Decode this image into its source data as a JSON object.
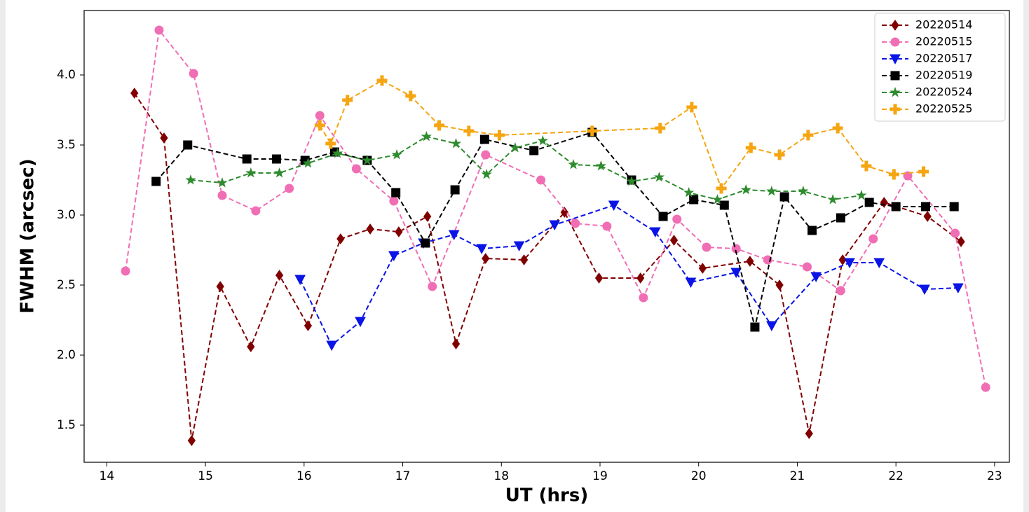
{
  "chart_data": {
    "type": "line",
    "x_label": "UT (hrs)",
    "y_label": "FWHM (arcsec)",
    "xlim": [
      13.77,
      23.15
    ],
    "ylim": [
      1.235,
      4.46
    ],
    "xticks": [
      14,
      15,
      16,
      17,
      18,
      19,
      20,
      21,
      22,
      23
    ],
    "yticks": [
      {
        "value": 1.5,
        "label": "1.5"
      },
      {
        "value": 2.0,
        "label": "2.0"
      },
      {
        "value": 2.5,
        "label": "2.5"
      },
      {
        "value": 3.0,
        "label": "3.0"
      },
      {
        "value": 3.5,
        "label": "3.5"
      },
      {
        "value": 4.0,
        "label": "4.0"
      }
    ],
    "legend": "upper right",
    "series": [
      {
        "name": "20220514",
        "color": "#800000",
        "marker": "diamond",
        "x": [
          14.28,
          14.58,
          14.86,
          15.15,
          15.46,
          15.75,
          16.04,
          16.37,
          16.67,
          16.96,
          17.25,
          17.54,
          17.84,
          18.23,
          18.64,
          18.99,
          19.41,
          19.75,
          20.04,
          20.52,
          20.82,
          21.12,
          21.46,
          21.88,
          22.32,
          22.66
        ],
        "values": [
          3.87,
          3.55,
          1.39,
          2.49,
          2.06,
          2.57,
          2.21,
          2.83,
          2.9,
          2.88,
          2.99,
          2.08,
          2.69,
          2.68,
          3.02,
          2.55,
          2.55,
          2.82,
          2.62,
          2.67,
          2.5,
          1.44,
          2.68,
          3.09,
          2.99,
          2.81
        ]
      },
      {
        "name": "20220515",
        "color": "#f06eb4",
        "marker": "circle",
        "x": [
          14.19,
          14.53,
          14.88,
          15.17,
          15.51,
          15.85,
          16.16,
          16.53,
          16.91,
          17.3,
          17.84,
          18.4,
          18.75,
          19.07,
          19.44,
          19.78,
          20.08,
          20.38,
          20.7,
          21.1,
          21.44,
          21.77,
          22.12,
          22.6,
          22.91
        ],
        "values": [
          2.6,
          4.32,
          4.01,
          3.14,
          3.03,
          3.19,
          3.71,
          3.33,
          3.1,
          2.49,
          3.43,
          3.25,
          2.94,
          2.92,
          2.41,
          2.97,
          2.77,
          2.76,
          2.68,
          2.63,
          2.46,
          2.83,
          3.28,
          2.87,
          1.77
        ]
      },
      {
        "name": "20220517",
        "color": "#0a14e6",
        "marker": "triangle-down",
        "x": [
          15.96,
          16.28,
          16.57,
          16.91,
          17.21,
          17.52,
          17.8,
          18.18,
          18.54,
          19.14,
          19.56,
          19.92,
          20.38,
          20.74,
          21.19,
          21.53,
          21.83,
          22.29,
          22.63
        ],
        "values": [
          2.54,
          2.07,
          2.24,
          2.71,
          2.8,
          2.86,
          2.76,
          2.78,
          2.93,
          3.07,
          2.88,
          2.52,
          2.59,
          2.21,
          2.56,
          2.66,
          2.66,
          2.47,
          2.48
        ]
      },
      {
        "name": "20220519",
        "color": "#000000",
        "marker": "square",
        "x": [
          14.5,
          14.82,
          15.42,
          15.72,
          16.01,
          16.31,
          16.64,
          16.93,
          17.23,
          17.53,
          17.83,
          18.33,
          18.92,
          19.32,
          19.64,
          19.95,
          20.26,
          20.57,
          20.87,
          21.15,
          21.44,
          21.73,
          22.0,
          22.3,
          22.59
        ],
        "values": [
          3.24,
          3.5,
          3.4,
          3.4,
          3.39,
          3.45,
          3.39,
          3.16,
          2.8,
          3.18,
          3.54,
          3.46,
          3.59,
          3.25,
          2.99,
          3.11,
          3.07,
          2.2,
          3.13,
          2.89,
          2.98,
          3.09,
          3.06,
          3.06,
          3.06
        ]
      },
      {
        "name": "20220524",
        "color": "#2e8b2e",
        "marker": "star",
        "x": [
          14.85,
          15.17,
          15.46,
          15.75,
          16.04,
          16.34,
          16.64,
          16.94,
          17.24,
          17.54,
          17.85,
          18.14,
          18.42,
          18.73,
          19.01,
          19.32,
          19.6,
          19.9,
          20.19,
          20.48,
          20.74,
          21.06,
          21.36,
          21.65
        ],
        "values": [
          3.25,
          3.23,
          3.3,
          3.3,
          3.37,
          3.44,
          3.39,
          3.43,
          3.56,
          3.51,
          3.29,
          3.48,
          3.53,
          3.36,
          3.35,
          3.24,
          3.27,
          3.16,
          3.11,
          3.18,
          3.17,
          3.17,
          3.11,
          3.14
        ]
      },
      {
        "name": "20220525",
        "color": "#f5a511",
        "marker": "plus",
        "x": [
          16.16,
          16.27,
          16.44,
          16.79,
          17.08,
          17.37,
          17.67,
          17.98,
          18.92,
          19.61,
          19.93,
          20.23,
          20.53,
          20.82,
          21.11,
          21.41,
          21.7,
          21.98,
          22.28
        ],
        "values": [
          3.64,
          3.51,
          3.82,
          3.96,
          3.85,
          3.64,
          3.6,
          3.57,
          3.6,
          3.62,
          3.77,
          3.19,
          3.48,
          3.43,
          3.57,
          3.62,
          3.35,
          3.29,
          3.31
        ]
      }
    ]
  }
}
